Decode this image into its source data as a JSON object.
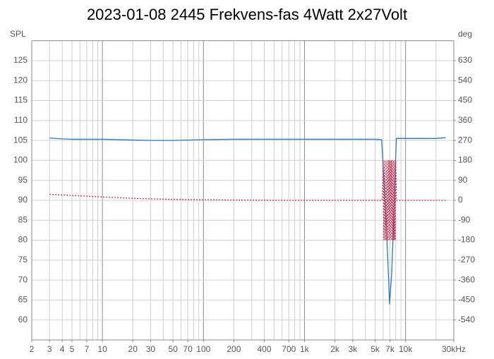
{
  "chart_data": {
    "type": "line",
    "title": "2023-01-08 2445 Frekvens-fas 4Watt 2x27Volt",
    "ylabel": "SPL",
    "y2label": "deg",
    "xscale": "log",
    "grid": true,
    "xlim": [
      2,
      30000
    ],
    "xticks": [
      2,
      3,
      4,
      5,
      7,
      10,
      20,
      30,
      50,
      70,
      100,
      200,
      400,
      700,
      {
        "value": 1000,
        "label": "1k"
      },
      {
        "value": 2000,
        "label": "2k"
      },
      {
        "value": 3000,
        "label": "3k"
      },
      {
        "value": 5000,
        "label": "5k"
      },
      {
        "value": 7000,
        "label": "7k"
      },
      {
        "value": 10000,
        "label": "10k"
      },
      {
        "value": 30000,
        "label": "30kHz"
      }
    ],
    "xgrid": [
      2,
      3,
      4,
      5,
      6,
      7,
      8,
      9,
      10,
      20,
      30,
      40,
      50,
      60,
      70,
      80,
      90,
      100,
      200,
      300,
      400,
      500,
      600,
      700,
      800,
      900,
      1000,
      2000,
      3000,
      4000,
      5000,
      6000,
      7000,
      8000,
      9000,
      10000,
      20000,
      30000
    ],
    "ylim": [
      55,
      130
    ],
    "yticks": [
      60,
      65,
      70,
      75,
      80,
      85,
      90,
      95,
      100,
      105,
      110,
      115,
      120,
      125
    ],
    "y2lim": [
      -630,
      720
    ],
    "y2ticks": [
      -540,
      -450,
      -360,
      -270,
      -180,
      -90,
      0,
      90,
      180,
      270,
      360,
      450,
      540,
      630
    ],
    "series": [
      {
        "color": "#2a78c2",
        "style": "solid",
        "x": [
          3,
          4,
          5,
          7,
          10,
          20,
          30,
          50,
          100,
          200,
          500,
          1000,
          2000,
          5000,
          5800,
          6200,
          6600,
          6950,
          7300,
          7700,
          8100,
          10000,
          20000,
          25000
        ],
        "values": [
          105.6,
          105.4,
          105.3,
          105.3,
          105.3,
          105.1,
          105.0,
          105.0,
          105.2,
          105.3,
          105.3,
          105.3,
          105.3,
          105.3,
          105.2,
          92,
          78,
          64,
          72,
          88,
          105.5,
          105.5,
          105.5,
          105.7
        ]
      },
      {
        "color": "#c0304f",
        "style": "dotted",
        "axis": "y2",
        "x": [
          3,
          5,
          10,
          20,
          50,
          100,
          500,
          1000,
          5000,
          5900,
          6000,
          6100,
          6200,
          6300,
          6400,
          6500,
          6600,
          6700,
          6800,
          6900,
          7000,
          7100,
          7200,
          7300,
          7400,
          7500,
          7600,
          7700,
          7800,
          7900,
          8000,
          8100,
          10000,
          25000
        ],
        "values": [
          27,
          22,
          15,
          9,
          4,
          2,
          0,
          0,
          0,
          0,
          180,
          -180,
          180,
          -180,
          180,
          -180,
          180,
          -180,
          180,
          -180,
          180,
          -180,
          180,
          -180,
          180,
          -180,
          180,
          -180,
          180,
          -180,
          180,
          0,
          0,
          0
        ]
      }
    ]
  }
}
